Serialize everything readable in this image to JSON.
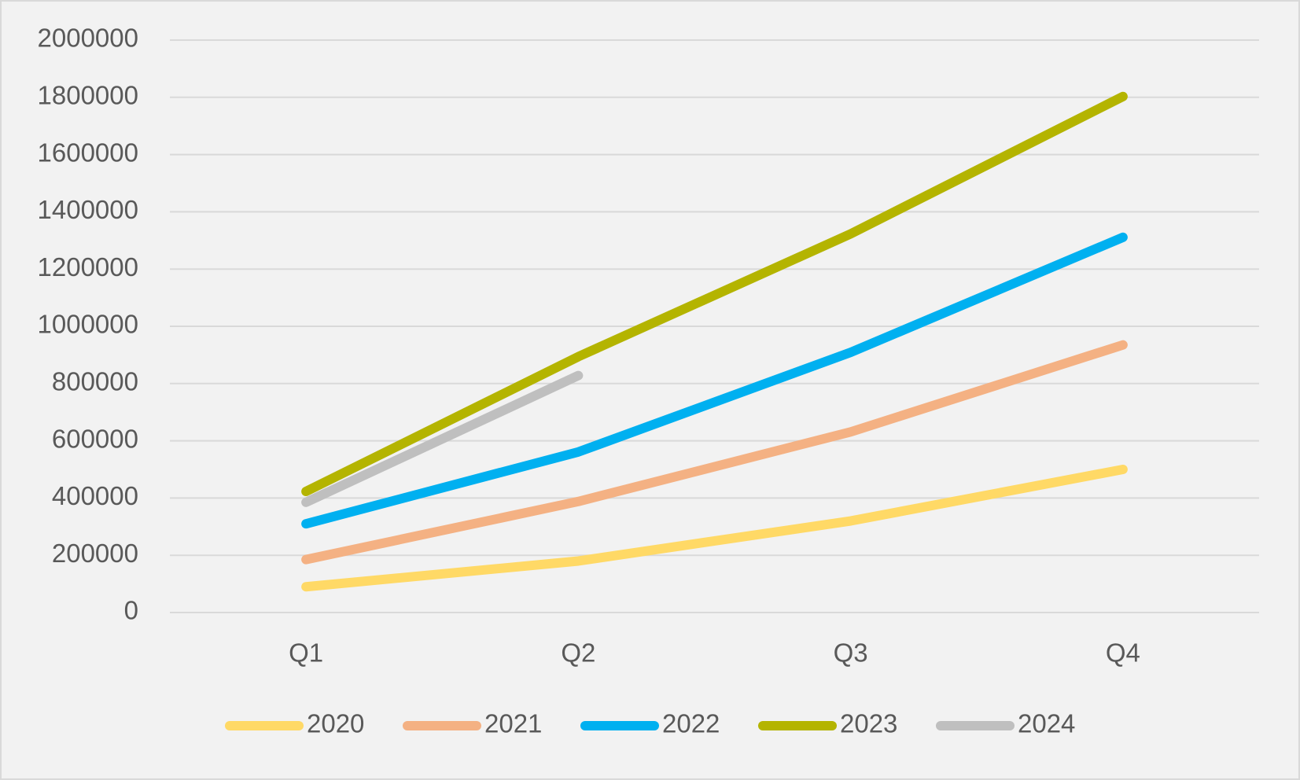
{
  "chart_data": {
    "type": "line",
    "categories": [
      "Q1",
      "Q2",
      "Q3",
      "Q4"
    ],
    "series": [
      {
        "name": "2020",
        "color": "#ffd966",
        "values": [
          90000,
          180000,
          320000,
          500000
        ]
      },
      {
        "name": "2021",
        "color": "#f4b183",
        "values": [
          185000,
          388000,
          631000,
          935000
        ]
      },
      {
        "name": "2022",
        "color": "#00b0f0",
        "values": [
          310000,
          561000,
          909000,
          1311000
        ]
      },
      {
        "name": "2023",
        "color": "#b4b400",
        "values": [
          423000,
          894000,
          1323000,
          1803000
        ]
      },
      {
        "name": "2024",
        "color": "#bfbfbf",
        "values": [
          385000,
          828000,
          null,
          null
        ]
      }
    ],
    "ylim": [
      0,
      2000000
    ],
    "yticks": [
      0,
      200000,
      400000,
      600000,
      800000,
      1000000,
      1200000,
      1400000,
      1600000,
      1800000,
      2000000
    ],
    "grid": true,
    "legend": "bottom"
  }
}
